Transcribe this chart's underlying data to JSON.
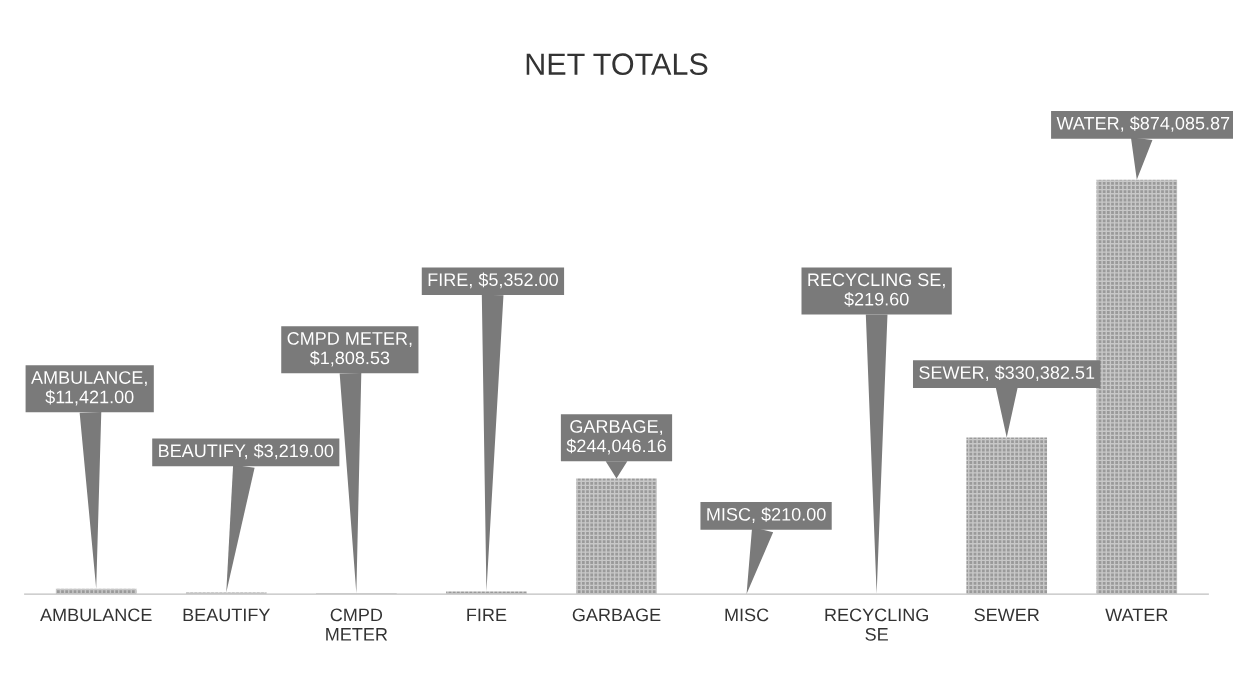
{
  "chart_data": {
    "type": "bar",
    "title": "NET TOTALS",
    "categories": [
      "AMBULANCE",
      "BEAUTIFY",
      "CMPD METER",
      "FIRE",
      "GARBAGE",
      "MISC",
      "RECYCLING SE",
      "SEWER",
      "WATER"
    ],
    "values": [
      11421.0,
      3219.0,
      1808.53,
      5352.0,
      244046.16,
      210.0,
      219.6,
      330382.51,
      874085.87
    ],
    "value_labels": [
      "AMBULANCE, $11,421.00",
      "BEAUTIFY, $3,219.00",
      "CMPD METER, $1,808.53",
      "FIRE, $5,352.00",
      "GARBAGE, $244,046.16",
      "MISC, $210.00",
      "RECYCLING SE, $219.60",
      "SEWER, $330,382.51",
      "WATER, $874,085.87"
    ],
    "color": "#9a9a9a",
    "grid": false
  }
}
